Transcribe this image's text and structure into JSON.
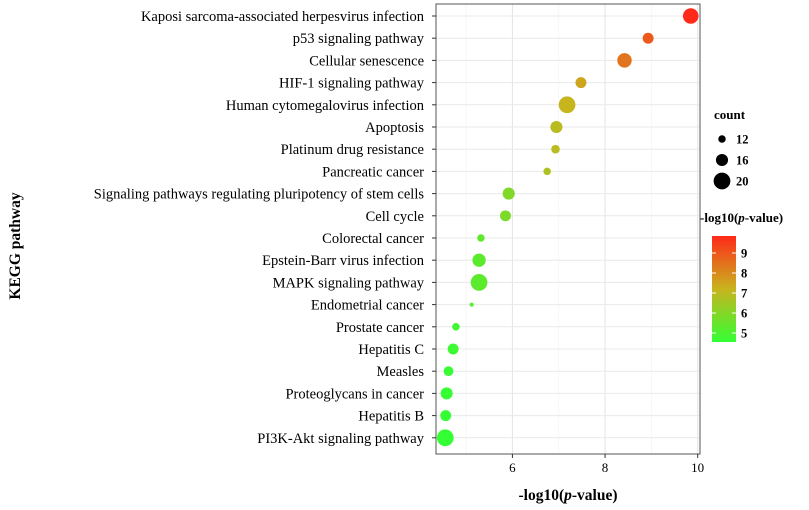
{
  "chart_data": {
    "type": "scatter",
    "title": "",
    "xlabel_prefix": "-log10(",
    "xlabel_italic": "p",
    "xlabel_suffix": "-value)",
    "ylabel": "KEGG pathway",
    "xlim": [
      4.35,
      10.05
    ],
    "xticks": [
      6,
      8,
      10
    ],
    "grid": true,
    "points": [
      {
        "pathway": "Kaposi sarcoma-associated herpesvirus infection",
        "x": 9.85,
        "count": 19,
        "neglog10p": 9.85
      },
      {
        "pathway": "p53 signaling pathway",
        "x": 8.93,
        "count": 15,
        "neglog10p": 8.93
      },
      {
        "pathway": "Cellular senescence",
        "x": 8.42,
        "count": 18,
        "neglog10p": 8.42
      },
      {
        "pathway": "HIF-1 signaling pathway",
        "x": 7.48,
        "count": 15,
        "neglog10p": 7.48
      },
      {
        "pathway": "Human cytomegalovirus infection",
        "x": 7.18,
        "count": 20,
        "neglog10p": 7.18
      },
      {
        "pathway": "Apoptosis",
        "x": 6.95,
        "count": 16,
        "neglog10p": 6.95
      },
      {
        "pathway": "Platinum drug resistance",
        "x": 6.93,
        "count": 13,
        "neglog10p": 6.93
      },
      {
        "pathway": "Pancreatic cancer",
        "x": 6.75,
        "count": 12,
        "neglog10p": 6.75
      },
      {
        "pathway": "Signaling pathways regulating pluripotency of stem cells",
        "x": 5.92,
        "count": 16,
        "neglog10p": 5.92
      },
      {
        "pathway": "Cell cycle",
        "x": 5.85,
        "count": 15,
        "neglog10p": 5.85
      },
      {
        "pathway": "Colorectal cancer",
        "x": 5.32,
        "count": 12,
        "neglog10p": 5.32
      },
      {
        "pathway": "Epstein-Barr virus infection",
        "x": 5.28,
        "count": 17,
        "neglog10p": 5.28
      },
      {
        "pathway": "MAPK signaling pathway",
        "x": 5.28,
        "count": 20,
        "neglog10p": 5.28
      },
      {
        "pathway": "Endometrial cancer",
        "x": 5.12,
        "count": 9,
        "neglog10p": 5.12
      },
      {
        "pathway": "Prostate cancer",
        "x": 4.78,
        "count": 12,
        "neglog10p": 4.78
      },
      {
        "pathway": "Hepatitis C",
        "x": 4.72,
        "count": 15,
        "neglog10p": 4.72
      },
      {
        "pathway": "Measles",
        "x": 4.62,
        "count": 14,
        "neglog10p": 4.62
      },
      {
        "pathway": "Proteoglycans in cancer",
        "x": 4.58,
        "count": 16,
        "neglog10p": 4.58
      },
      {
        "pathway": "Hepatitis B",
        "x": 4.56,
        "count": 15,
        "neglog10p": 4.56
      },
      {
        "pathway": "PI3K-Akt signaling pathway",
        "x": 4.55,
        "count": 20,
        "neglog10p": 4.55
      }
    ],
    "size_legend": {
      "title": "count",
      "values": [
        12,
        16,
        20
      ]
    },
    "color_legend": {
      "title_prefix": "-log10(",
      "title_italic": "p",
      "title_suffix": "-value)",
      "range": [
        4.55,
        9.85
      ],
      "ticks": [
        5,
        6,
        7,
        8,
        9
      ],
      "low_color": "#33ff33",
      "mid_color": "#c8b41e",
      "high_color": "#ff2a1a"
    }
  }
}
